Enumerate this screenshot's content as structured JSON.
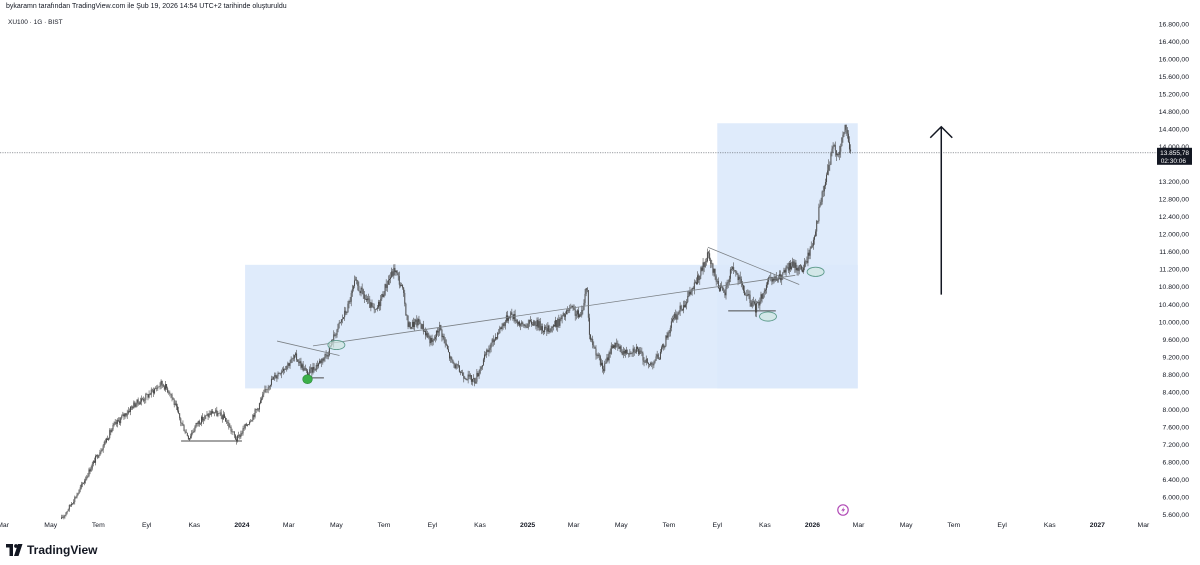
{
  "header": {
    "attribution": "bykaramn tarafından TradingView.com ile Şub 19, 2026 14:54 UTC+2 tarihinde oluşturuldu"
  },
  "symbol": {
    "label": "XU100 · 1G · BIST"
  },
  "footer": {
    "brand": "TradingView"
  },
  "colors": {
    "candle": "#4a4a4a",
    "zone_fill": "#dbe9fb",
    "marker_green": "#3cb04a",
    "marker_ring": "#5f9c8d",
    "trendline": "#7b8085",
    "price_tag_bg": "#131722",
    "arrow": "#131722",
    "axis_text": "#131722"
  },
  "current_price": {
    "value": "13.855,78",
    "countdown": "02:30:06"
  },
  "chart_data": {
    "type": "candlestick",
    "title": "XU100 · 1G · BIST",
    "y_scale": "linear",
    "ylim": [
      5500,
      17000
    ],
    "xlim": [
      "2023-02-25",
      "2027-03-12"
    ],
    "grid": false,
    "y_ticks": [
      "5.600,00",
      "6.000,00",
      "6.400,00",
      "6.800,00",
      "7.200,00",
      "7.600,00",
      "8.000,00",
      "8.400,00",
      "8.800,00",
      "9.200,00",
      "9.600,00",
      "10.000,00",
      "10.400,00",
      "10.800,00",
      "11.200,00",
      "11.600,00",
      "12.000,00",
      "12.400,00",
      "12.800,00",
      "13.200,00",
      "14.000,00",
      "14.400,00",
      "14.800,00",
      "15.200,00",
      "15.600,00",
      "16.000,00",
      "16.400,00",
      "16.800,00"
    ],
    "x_ticks": [
      {
        "label": "Mar",
        "date": "2023-03-01"
      },
      {
        "label": "May",
        "date": "2023-05-01"
      },
      {
        "label": "Tem",
        "date": "2023-07-01"
      },
      {
        "label": "Eyl",
        "date": "2023-09-01"
      },
      {
        "label": "Kas",
        "date": "2023-11-01"
      },
      {
        "label": "2024",
        "date": "2024-01-01"
      },
      {
        "label": "Mar",
        "date": "2024-03-01"
      },
      {
        "label": "May",
        "date": "2024-05-01"
      },
      {
        "label": "Tem",
        "date": "2024-07-01"
      },
      {
        "label": "Eyl",
        "date": "2024-09-01"
      },
      {
        "label": "Kas",
        "date": "2024-11-01"
      },
      {
        "label": "2025",
        "date": "2025-01-01"
      },
      {
        "label": "Mar",
        "date": "2025-03-01"
      },
      {
        "label": "May",
        "date": "2025-05-01"
      },
      {
        "label": "Tem",
        "date": "2025-07-01"
      },
      {
        "label": "Eyl",
        "date": "2025-09-01"
      },
      {
        "label": "Kas",
        "date": "2025-11-01"
      },
      {
        "label": "2026",
        "date": "2026-01-01"
      },
      {
        "label": "Mar",
        "date": "2026-03-01"
      },
      {
        "label": "May",
        "date": "2026-05-01"
      },
      {
        "label": "Tem",
        "date": "2026-07-01"
      },
      {
        "label": "Eyl",
        "date": "2026-09-01"
      },
      {
        "label": "Kas",
        "date": "2026-11-01"
      },
      {
        "label": "2027",
        "date": "2027-01-01"
      },
      {
        "label": "Mar",
        "date": "2027-03-01"
      }
    ],
    "price_path": [
      [
        "2023-05-15",
        5500
      ],
      [
        "2023-06-05",
        6100
      ],
      [
        "2023-06-25",
        6800
      ],
      [
        "2023-07-20",
        7600
      ],
      [
        "2023-08-15",
        8100
      ],
      [
        "2023-09-01",
        8300
      ],
      [
        "2023-09-20",
        8600
      ],
      [
        "2023-10-01",
        8400
      ],
      [
        "2023-10-15",
        7700
      ],
      [
        "2023-10-25",
        7350
      ],
      [
        "2023-11-05",
        7700
      ],
      [
        "2023-11-25",
        7950
      ],
      [
        "2023-12-10",
        7800
      ],
      [
        "2023-12-25",
        7300
      ],
      [
        "2024-01-05",
        7600
      ],
      [
        "2024-01-20",
        8000
      ],
      [
        "2024-02-05",
        8600
      ],
      [
        "2024-02-20",
        8900
      ],
      [
        "2024-03-10",
        9200
      ],
      [
        "2024-03-25",
        8800
      ],
      [
        "2024-04-05",
        9000
      ],
      [
        "2024-04-20",
        9300
      ],
      [
        "2024-05-01",
        9800
      ],
      [
        "2024-05-15",
        10300
      ],
      [
        "2024-05-25",
        10900
      ],
      [
        "2024-06-08",
        10500
      ],
      [
        "2024-06-20",
        10200
      ],
      [
        "2024-07-05",
        10900
      ],
      [
        "2024-07-15",
        11200
      ],
      [
        "2024-07-25",
        10700
      ],
      [
        "2024-08-01",
        9900
      ],
      [
        "2024-08-15",
        10000
      ],
      [
        "2024-09-01",
        9500
      ],
      [
        "2024-09-10",
        9900
      ],
      [
        "2024-09-25",
        9100
      ],
      [
        "2024-10-10",
        8800
      ],
      [
        "2024-10-25",
        8650
      ],
      [
        "2024-11-10",
        9300
      ],
      [
        "2024-11-25",
        9800
      ],
      [
        "2024-12-10",
        10200
      ],
      [
        "2024-12-25",
        9900
      ],
      [
        "2025-01-10",
        10000
      ],
      [
        "2025-01-25",
        9800
      ],
      [
        "2025-02-10",
        10000
      ],
      [
        "2025-02-25",
        10300
      ],
      [
        "2025-03-10",
        10100
      ],
      [
        "2025-03-18",
        10850
      ],
      [
        "2025-03-21",
        9700
      ],
      [
        "2025-04-08",
        8900
      ],
      [
        "2025-04-20",
        9500
      ],
      [
        "2025-05-05",
        9300
      ],
      [
        "2025-05-20",
        9400
      ],
      [
        "2025-06-05",
        9000
      ],
      [
        "2025-06-20",
        9250
      ],
      [
        "2025-07-05",
        10000
      ],
      [
        "2025-07-20",
        10400
      ],
      [
        "2025-08-05",
        10900
      ],
      [
        "2025-08-20",
        11500
      ],
      [
        "2025-09-01",
        10900
      ],
      [
        "2025-09-10",
        10600
      ],
      [
        "2025-09-20",
        11300
      ],
      [
        "2025-10-05",
        10700
      ],
      [
        "2025-10-20",
        10300
      ],
      [
        "2025-11-05",
        10900
      ],
      [
        "2025-11-20",
        11000
      ],
      [
        "2025-12-05",
        11300
      ],
      [
        "2025-12-20",
        11200
      ],
      [
        "2026-01-01",
        11800
      ],
      [
        "2026-01-10",
        12600
      ],
      [
        "2026-01-20",
        13400
      ],
      [
        "2026-01-28",
        14000
      ],
      [
        "2026-02-05",
        13850
      ],
      [
        "2026-02-12",
        14500
      ],
      [
        "2026-02-19",
        13855.78
      ]
    ],
    "annotations": {
      "zones": [
        {
          "start": "2024-01-05",
          "end": "2026-02-28",
          "low": 8480,
          "high": 11300
        },
        {
          "start": "2025-09-01",
          "end": "2026-02-28",
          "low": 8480,
          "high": 14530
        }
      ],
      "horizontal_lines": [
        {
          "start": "2023-10-15",
          "end": "2024-01-01",
          "price": 7280
        },
        {
          "start": "2024-03-20",
          "end": "2024-04-15",
          "price": 8720
        },
        {
          "start": "2025-09-15",
          "end": "2025-11-15",
          "price": 10250
        },
        {
          "type": "current_price",
          "price": 13855.78
        }
      ],
      "trendlines": [
        {
          "points": [
            [
              "2024-04-01",
              9450
            ],
            [
              "2025-12-10",
              11060
            ]
          ]
        },
        {
          "points": [
            [
              "2024-02-15",
              9560
            ],
            [
              "2024-05-05",
              9230
            ]
          ]
        },
        {
          "points": [
            [
              "2025-08-20",
              11700
            ],
            [
              "2025-12-15",
              10850
            ]
          ]
        }
      ],
      "markers": [
        {
          "date": "2024-03-25",
          "price": 8690,
          "style": "filled"
        },
        {
          "date": "2024-05-01",
          "price": 9470,
          "style": "ring"
        },
        {
          "date": "2025-11-05",
          "price": 10120,
          "style": "ring"
        },
        {
          "date": "2026-01-05",
          "price": 11140,
          "style": "ring"
        }
      ],
      "arrow": {
        "date": "2026-06-15",
        "from": 10620,
        "to": 14450
      }
    }
  }
}
